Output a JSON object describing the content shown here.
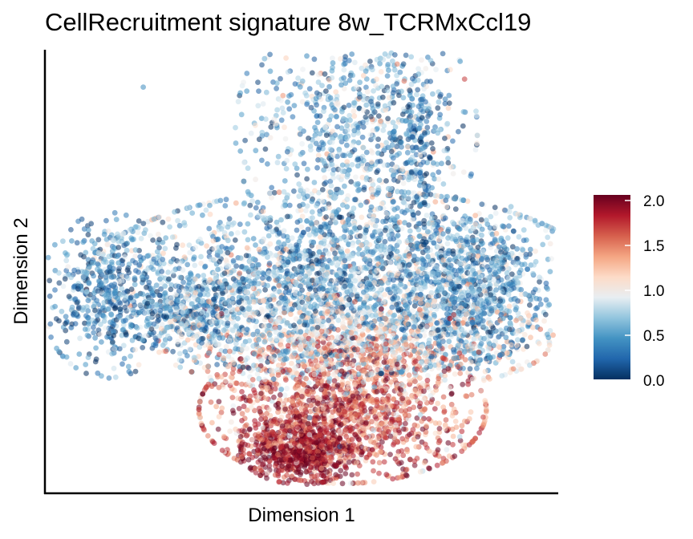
{
  "chart_data": {
    "type": "scatter",
    "title": "CellRecruitment signature 8w_TCRMxCcl19",
    "xlabel": "Dimension 1",
    "ylabel": "Dimension 2",
    "x_ticks_shown": false,
    "y_ticks_shown": false,
    "grid": false,
    "point_alpha": 0.55,
    "colorbar": {
      "min": 0.0,
      "max": 2.0,
      "ticks": [
        "0.0",
        "0.5",
        "1.0",
        "1.5",
        "2.0"
      ],
      "placement": "right",
      "colormap": "RdBu_r",
      "stops": [
        "#053061",
        "#2166ac",
        "#4393c3",
        "#92c5de",
        "#e8eef2",
        "#fddbc7",
        "#f4a582",
        "#d6604d",
        "#b2182b",
        "#67001f"
      ]
    },
    "clusters": [
      {
        "name": "left-island",
        "cx": -6.2,
        "cy": 0.9,
        "sx": 0.9,
        "sy": 0.85,
        "n": 520,
        "value_mean": 0.35,
        "value_sd": 0.3
      },
      {
        "name": "upper-lobe",
        "cx": 1.0,
        "cy": 4.6,
        "sx": 1.6,
        "sy": 1.4,
        "n": 900,
        "value_mean": 0.55,
        "value_sd": 0.35
      },
      {
        "name": "upper-right-arm",
        "cx": 2.8,
        "cy": 4.2,
        "sx": 0.4,
        "sy": 1.0,
        "n": 180,
        "value_mean": 0.3,
        "value_sd": 0.25
      },
      {
        "name": "central-band",
        "cx": 0.6,
        "cy": 1.2,
        "sx": 3.4,
        "sy": 0.95,
        "n": 2600,
        "value_mean": 0.55,
        "value_sd": 0.35
      },
      {
        "name": "right-shoulder",
        "cx": 4.3,
        "cy": 1.0,
        "sx": 0.9,
        "sy": 0.8,
        "n": 500,
        "value_mean": 0.45,
        "value_sd": 0.3
      },
      {
        "name": "mid-transition",
        "cx": 0.9,
        "cy": -0.2,
        "sx": 2.6,
        "sy": 0.5,
        "n": 900,
        "value_mean": 1.05,
        "value_sd": 0.35
      },
      {
        "name": "lower-body",
        "cx": 0.6,
        "cy": -1.7,
        "sx": 1.9,
        "sy": 0.75,
        "n": 1500,
        "value_mean": 1.55,
        "value_sd": 0.35
      },
      {
        "name": "bottom-core",
        "cx": -0.6,
        "cy": -2.6,
        "sx": 0.8,
        "sy": 0.35,
        "n": 600,
        "value_mean": 1.9,
        "value_sd": 0.2
      },
      {
        "name": "left-neck",
        "cx": -3.6,
        "cy": 0.5,
        "sx": 0.7,
        "sy": 0.35,
        "n": 250,
        "value_mean": 0.5,
        "value_sd": 0.4
      }
    ],
    "x_range": [
      -7.5,
      6.5
    ],
    "y_range": [
      -3.3,
      6.3
    ]
  }
}
